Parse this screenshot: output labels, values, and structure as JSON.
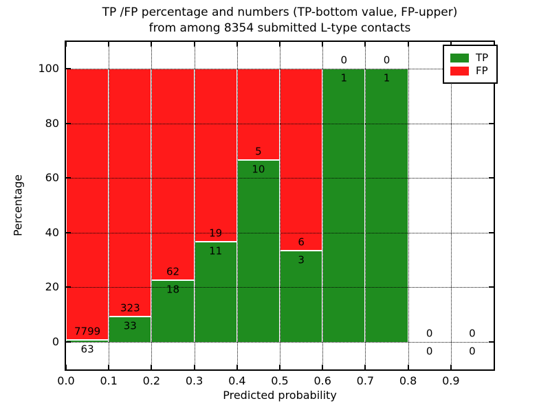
{
  "title": {
    "line1": "TP /FP percentage and numbers (TP-bottom value, FP-upper)",
    "line2": "from among 8354 submitted L-type contacts"
  },
  "axes": {
    "xlabel": "Predicted probability",
    "ylabel": "Percentage",
    "xtick_labels": [
      "0.0",
      "0.1",
      "0.2",
      "0.3",
      "0.4",
      "0.5",
      "0.6",
      "0.7",
      "0.8",
      "0.9"
    ],
    "xtick_values": [
      0.0,
      0.1,
      0.2,
      0.3,
      0.4,
      0.5,
      0.6,
      0.7,
      0.8,
      0.9
    ],
    "ytick_labels": [
      "0",
      "20",
      "40",
      "60",
      "80",
      "100"
    ],
    "ytick_values": [
      0,
      20,
      40,
      60,
      80,
      100
    ],
    "xlim": [
      0.0,
      1.0
    ],
    "ylim": [
      -10,
      110
    ],
    "grid_style": "dotted"
  },
  "legend": {
    "position": "upper-right",
    "items": [
      {
        "label": "TP",
        "color": "#1f8c1f"
      },
      {
        "label": "FP",
        "color": "#ff1a1a"
      }
    ]
  },
  "colors": {
    "tp": "#1f8c1f",
    "fp": "#ff1a1a",
    "edge": "#ffffff",
    "grid": "#000000"
  },
  "chart_data": {
    "type": "bar",
    "stacked": true,
    "title": "TP /FP percentage and numbers (TP-bottom value, FP-upper) from among 8354 submitted L-type contacts",
    "xlabel": "Predicted probability",
    "ylabel": "Percentage",
    "bin_width": 0.1,
    "bin_starts": [
      0.0,
      0.1,
      0.2,
      0.3,
      0.4,
      0.5,
      0.6,
      0.7,
      0.8,
      0.9
    ],
    "series": [
      {
        "name": "TP",
        "counts": [
          63,
          33,
          18,
          11,
          10,
          3,
          1,
          1,
          0,
          0
        ],
        "pct": [
          0.8,
          9.3,
          22.5,
          36.7,
          66.7,
          33.3,
          100,
          100,
          0,
          0
        ]
      },
      {
        "name": "FP",
        "counts": [
          7799,
          323,
          62,
          19,
          5,
          6,
          0,
          0,
          0,
          0
        ],
        "pct": [
          99.2,
          90.7,
          77.5,
          63.3,
          33.3,
          66.7,
          0,
          0,
          0,
          0
        ]
      }
    ]
  }
}
